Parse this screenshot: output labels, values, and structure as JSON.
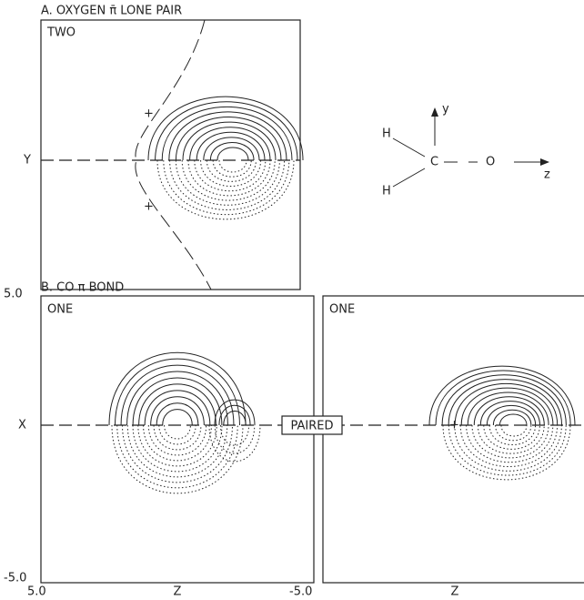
{
  "panel_a": {
    "title": "A. OXYGEN π̄ LONE PAIR",
    "label": "TWO",
    "axis_label": "Y",
    "plus_marks": [
      "+",
      "+"
    ]
  },
  "molecule": {
    "atoms": [
      "H",
      "C",
      "O",
      "H"
    ],
    "axes": [
      "y",
      "z"
    ]
  },
  "panel_b": {
    "title": "B. CO π BOND",
    "left_label": "ONE",
    "right_label": "ONE",
    "axis_label": "X",
    "center_label": "PAIRED",
    "y_top": "5.0",
    "y_bottom": "-5.0",
    "x_left": "5.0",
    "x_right": "-5.0",
    "z_labels": [
      "Z",
      "Z"
    ],
    "plus_mark": "+"
  }
}
